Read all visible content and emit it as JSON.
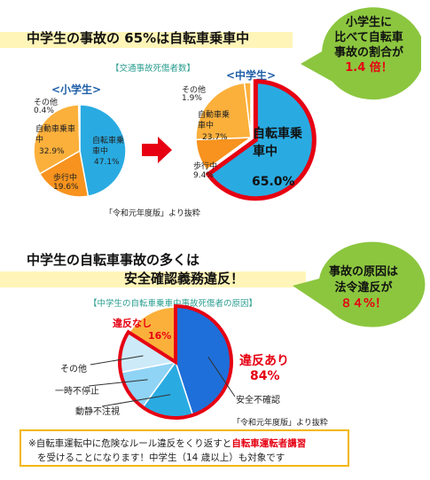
{
  "section1": {
    "heading": "中学生の事故の 65%は自転車乗車中",
    "subtitle": "【交通事故死傷者数】",
    "bubble": {
      "line1": "小学生に",
      "line2": "比べて自転車",
      "line3": "事故の割合が",
      "highlight": "1.4 倍！"
    },
    "source": "「令和元年度版」より抜粋"
  },
  "section2": {
    "heading_line1": "中学生の自転車事故の多くは",
    "heading_line2": "安全確認義務違反！",
    "subtitle": "【中学生の自転車乗車中事故死傷者の原因】",
    "bubble": {
      "line1": "事故の原因は",
      "line2": "法令違反が",
      "highlight": "８４%！"
    },
    "source": "「令和元年度版」より抜粋"
  },
  "note": {
    "line1_pre": "※自転車運転中に危険なルール違反をくり返すと",
    "line1_red": "自転車運転者講習",
    "line2": "を受けることになります！中学生（14 歳以上）も対象です"
  },
  "colors": {
    "blue": "#29abe2",
    "orange": "#f7931e",
    "yellow": "#fbb03b",
    "red": "#e60012",
    "teal": "#2a9d8f",
    "band": "#fff5b8",
    "bubble": "#8cc63f"
  },
  "chart_data": [
    {
      "type": "pie",
      "title": "<小学生>",
      "slices": [
        {
          "label": "自転車乗車中",
          "value": 47.1,
          "display": "47.1%"
        },
        {
          "label": "歩行中",
          "value": 19.6,
          "display": "19.6%"
        },
        {
          "label": "自動車乗車中",
          "value": 32.9,
          "display": "32.9%"
        },
        {
          "label": "その他",
          "value": 0.4,
          "display": "0.4%"
        }
      ]
    },
    {
      "type": "pie",
      "title": "<中学生>",
      "slices": [
        {
          "label": "自転車乗車中",
          "value": 65.0,
          "display": "65.0%"
        },
        {
          "label": "歩行中",
          "value": 9.4,
          "display": "9.4%"
        },
        {
          "label": "自動車乗車中",
          "value": 23.7,
          "display": "23.7%"
        },
        {
          "label": "その他",
          "value": 1.9,
          "display": "1.9%"
        }
      ]
    },
    {
      "type": "pie",
      "title": "",
      "groups": [
        {
          "label": "違反あり",
          "value": 84,
          "display": "84%"
        },
        {
          "label": "違反なし",
          "value": 16,
          "display": "16%"
        }
      ],
      "slices": [
        {
          "label": "安全不確認",
          "value": 45
        },
        {
          "label": "動静不注視",
          "value": 15
        },
        {
          "label": "一時不停止",
          "value": 12
        },
        {
          "label": "その他",
          "value": 12
        },
        {
          "label": "違反なし",
          "value": 16
        }
      ]
    }
  ]
}
